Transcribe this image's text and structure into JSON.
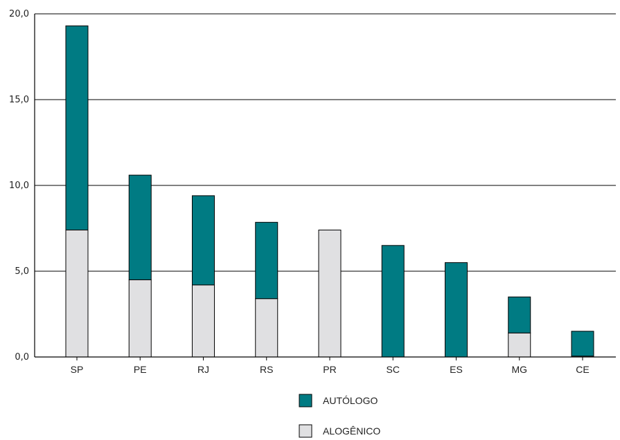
{
  "chart_data": {
    "type": "bar",
    "stacked": true,
    "categories": [
      "SP",
      "PE",
      "RJ",
      "RS",
      "PR",
      "SC",
      "ES",
      "MG",
      "CE"
    ],
    "series": [
      {
        "name": "ALOGÊNICO",
        "color": "#e0e0e2",
        "values": [
          7.4,
          4.5,
          4.2,
          3.4,
          7.4,
          0.0,
          0.0,
          1.4,
          0.05
        ]
      },
      {
        "name": "AUTÓLOGO",
        "color": "#007b83",
        "values": [
          11.9,
          6.1,
          5.2,
          4.45,
          0.0,
          6.5,
          5.5,
          2.1,
          1.45
        ]
      }
    ],
    "yticks": [
      "0,0",
      "5,0",
      "10,0",
      "15,0",
      "20,0"
    ],
    "ylim": [
      0,
      20
    ],
    "grid": true,
    "legend": {
      "position": "bottom-center",
      "order": [
        "AUTÓLOGO",
        "ALOGÊNICO"
      ]
    },
    "title": "",
    "xlabel": "",
    "ylabel": ""
  }
}
